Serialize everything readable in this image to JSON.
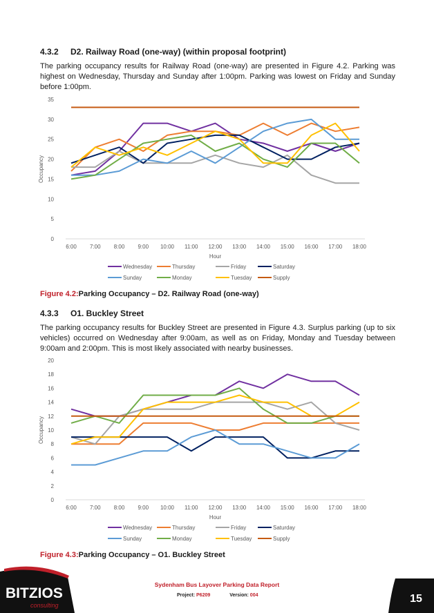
{
  "section1": {
    "number": "4.3.2",
    "title": "D2. Railway Road (one-way) (within proposal footprint)",
    "paragraph": "The parking occupancy results for Railway Road (one-way) are presented in Figure 4.2. Parking was highest on Wednesday, Thursday and Sunday after 1:00pm. Parking was lowest on Friday and Sunday before 1:00pm."
  },
  "figure1": {
    "label": "Figure 4.2:",
    "title": "Parking Occupancy – D2. Railway Road (one-way)"
  },
  "section2": {
    "number": "4.3.3",
    "title": "O1. Buckley Street",
    "paragraph": "The parking occupancy results for Buckley Street are presented in Figure 4.3. Surplus parking (up to six vehicles) occurred on Wednesday after 9:00am, as well as on Friday, Monday and Tuesday between 9:00am and 2:00pm. This is most likely associated with nearby businesses."
  },
  "figure2": {
    "label": "Figure 4.3:",
    "title": "Parking Occupancy – O1. Buckley Street"
  },
  "chart_data": [
    {
      "type": "line",
      "xlabel": "Hour",
      "ylabel": "Occupancy",
      "ylim": [
        0,
        35
      ],
      "ytick_step": 5,
      "grid": false,
      "legend": "bottom",
      "x": [
        "6:00",
        "7:00",
        "8:00",
        "9:00",
        "10:00",
        "11:00",
        "12:00",
        "13:00",
        "14:00",
        "15:00",
        "16:00",
        "17:00",
        "18:00"
      ],
      "series": [
        {
          "name": "Wednesday",
          "color": "#7030a0",
          "values": [
            16,
            17,
            22,
            29,
            29,
            27,
            29,
            25,
            24,
            22,
            24,
            22,
            24
          ]
        },
        {
          "name": "Thursday",
          "color": "#ed7d31",
          "values": [
            17,
            23,
            25,
            22,
            26,
            27,
            27,
            26,
            29,
            26,
            29,
            27,
            28
          ]
        },
        {
          "name": "Friday",
          "color": "#a5a5a5",
          "values": [
            18,
            18,
            22,
            19,
            19,
            19,
            21,
            19,
            18,
            21,
            16,
            14,
            14
          ]
        },
        {
          "name": "Saturday",
          "color": "#002060",
          "values": [
            19,
            21,
            23,
            19,
            24,
            25,
            26,
            26,
            23,
            20,
            20,
            23,
            24
          ]
        },
        {
          "name": "Sunday",
          "color": "#5b9bd5",
          "values": [
            16,
            16,
            17,
            20,
            19,
            22,
            19,
            23,
            27,
            29,
            30,
            25,
            25
          ]
        },
        {
          "name": "Monday",
          "color": "#70ad47",
          "values": [
            15,
            16,
            20,
            24,
            25,
            26,
            22,
            24,
            20,
            18,
            24,
            24,
            19
          ]
        },
        {
          "name": "Tuesday",
          "color": "#ffc000",
          "values": [
            18,
            23,
            21,
            23,
            21,
            24,
            27,
            25,
            19,
            19,
            26,
            29,
            22
          ]
        },
        {
          "name": "Supply",
          "color": "#c55a11",
          "values": [
            33,
            33,
            33,
            33,
            33,
            33,
            33,
            33,
            33,
            33,
            33,
            33,
            33
          ]
        }
      ]
    },
    {
      "type": "line",
      "xlabel": "Hour",
      "ylabel": "Occupancy",
      "ylim": [
        0,
        20
      ],
      "ytick_step": 2,
      "grid": false,
      "legend": "bottom",
      "x": [
        "6:00",
        "7:00",
        "8:00",
        "9:00",
        "10:00",
        "11:00",
        "12:00",
        "13:00",
        "14:00",
        "15:00",
        "16:00",
        "17:00",
        "18:00"
      ],
      "series": [
        {
          "name": "Wednesday",
          "color": "#7030a0",
          "values": [
            13,
            12,
            12,
            13,
            14,
            15,
            15,
            17,
            16,
            18,
            17,
            17,
            15
          ]
        },
        {
          "name": "Thursday",
          "color": "#ed7d31",
          "values": [
            8,
            8,
            8,
            11,
            11,
            11,
            10,
            10,
            11,
            11,
            11,
            11,
            11
          ]
        },
        {
          "name": "Friday",
          "color": "#a5a5a5",
          "values": [
            9,
            8,
            12,
            13,
            13,
            13,
            14,
            14,
            14,
            13,
            14,
            11,
            10
          ]
        },
        {
          "name": "Saturday",
          "color": "#002060",
          "values": [
            9,
            9,
            9,
            9,
            9,
            7,
            9,
            9,
            9,
            6,
            6,
            7,
            7
          ]
        },
        {
          "name": "Sunday",
          "color": "#5b9bd5",
          "values": [
            5,
            5,
            6,
            7,
            7,
            9,
            10,
            8,
            8,
            7,
            6,
            6,
            8
          ]
        },
        {
          "name": "Monday",
          "color": "#70ad47",
          "values": [
            11,
            12,
            11,
            15,
            15,
            15,
            15,
            16,
            13,
            11,
            11,
            12,
            12
          ]
        },
        {
          "name": "Tuesday",
          "color": "#ffc000",
          "values": [
            8,
            9,
            9,
            13,
            14,
            14,
            14,
            15,
            14,
            14,
            12,
            12,
            14
          ]
        },
        {
          "name": "Supply",
          "color": "#c55a11",
          "values": [
            12,
            12,
            12,
            12,
            12,
            12,
            12,
            12,
            12,
            12,
            12,
            12,
            12
          ]
        }
      ]
    }
  ],
  "footer": {
    "report_title": "Sydenham Bus Layover Parking Data Report",
    "project_label": "Project:",
    "project_value": "P6209",
    "version_label": "Version:",
    "version_value": "004",
    "page_number": "15",
    "logo_main": "BITZIOS",
    "logo_sub": "consulting"
  },
  "colors": {
    "accent": "#c0202a",
    "dark": "#1a1a1a"
  }
}
